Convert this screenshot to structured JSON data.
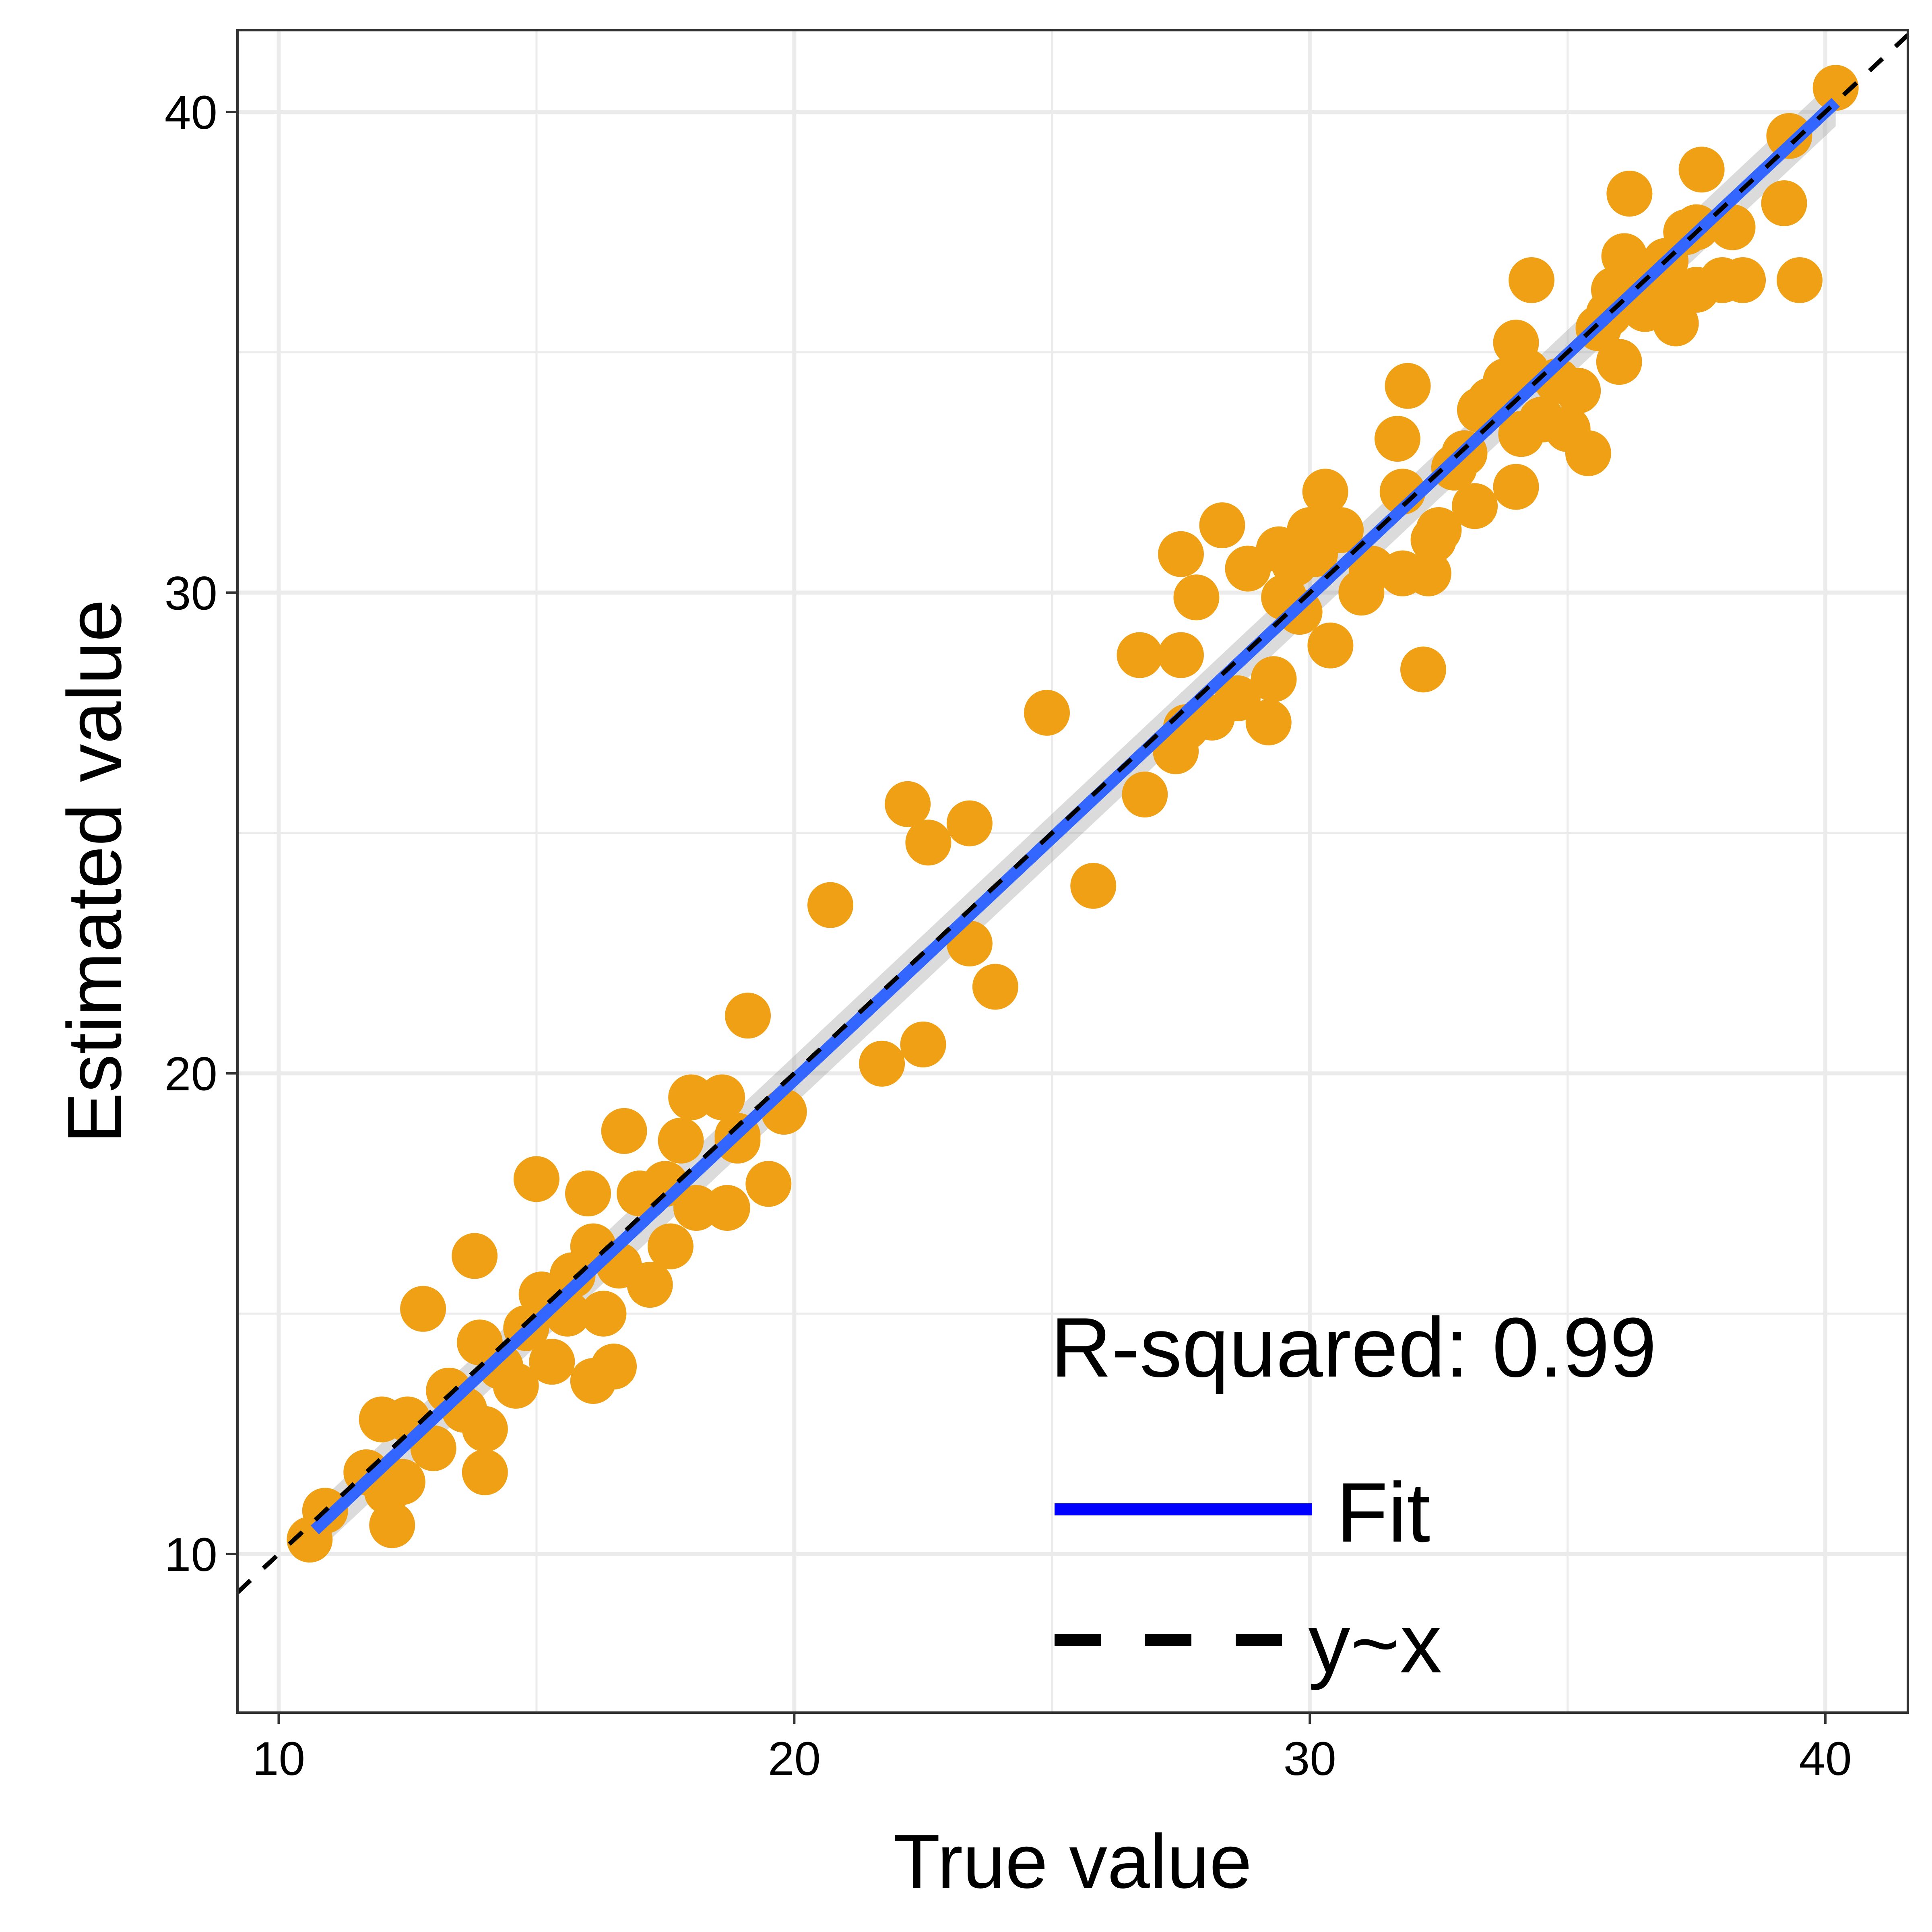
{
  "chart_data": {
    "type": "scatter",
    "xlabel": "True value",
    "ylabel": "Estimated value",
    "xlim": [
      9.2,
      41.6
    ],
    "ylim": [
      6.7,
      41.7
    ],
    "xticks": [
      10,
      20,
      30,
      40
    ],
    "yticks": [
      10,
      20,
      30,
      40
    ],
    "grid": true,
    "annotation": "R-squared: 0.99",
    "legend": {
      "position": "bottom-right",
      "entries": [
        {
          "label": "Fit",
          "style": "solid",
          "color": "#0000ff"
        },
        {
          "label": "y~x",
          "style": "dashed",
          "color": "#000000"
        }
      ]
    },
    "point_color": "#f0a014",
    "fit_color": "#3366ff",
    "identity_color": "#000000",
    "fit_line": {
      "x": [
        10.7,
        40.2
      ],
      "y": [
        10.5,
        40.2
      ]
    },
    "points": [
      [
        10.6,
        10.3
      ],
      [
        10.9,
        10.9
      ],
      [
        11.7,
        11.7
      ],
      [
        12.0,
        12.8
      ],
      [
        12.1,
        11.3
      ],
      [
        12.2,
        10.6
      ],
      [
        12.4,
        11.5
      ],
      [
        12.5,
        12.8
      ],
      [
        12.8,
        15.1
      ],
      [
        13.0,
        12.2
      ],
      [
        13.3,
        13.4
      ],
      [
        13.6,
        13.0
      ],
      [
        13.8,
        16.2
      ],
      [
        13.9,
        14.4
      ],
      [
        14.0,
        12.6
      ],
      [
        14.0,
        11.7
      ],
      [
        14.3,
        13.9
      ],
      [
        14.6,
        13.5
      ],
      [
        14.8,
        14.7
      ],
      [
        15.0,
        17.8
      ],
      [
        15.1,
        15.4
      ],
      [
        15.3,
        14.0
      ],
      [
        15.6,
        15.0
      ],
      [
        15.7,
        15.8
      ],
      [
        16.0,
        17.5
      ],
      [
        16.1,
        13.6
      ],
      [
        16.1,
        16.4
      ],
      [
        16.3,
        15.0
      ],
      [
        16.5,
        13.9
      ],
      [
        16.6,
        16.0
      ],
      [
        16.7,
        18.8
      ],
      [
        17.0,
        17.5
      ],
      [
        17.2,
        15.6
      ],
      [
        17.5,
        17.7
      ],
      [
        17.6,
        16.4
      ],
      [
        17.8,
        18.6
      ],
      [
        18.0,
        19.5
      ],
      [
        18.1,
        17.2
      ],
      [
        18.6,
        19.5
      ],
      [
        18.7,
        17.2
      ],
      [
        18.9,
        18.6
      ],
      [
        18.9,
        18.7
      ],
      [
        19.1,
        21.2
      ],
      [
        19.5,
        17.7
      ],
      [
        19.8,
        19.2
      ],
      [
        20.7,
        23.5
      ],
      [
        21.7,
        20.2
      ],
      [
        22.2,
        25.6
      ],
      [
        22.5,
        20.6
      ],
      [
        22.6,
        24.8
      ],
      [
        23.4,
        22.7
      ],
      [
        23.4,
        25.2
      ],
      [
        23.9,
        21.8
      ],
      [
        24.9,
        27.5
      ],
      [
        25.8,
        23.9
      ],
      [
        26.7,
        28.7
      ],
      [
        26.8,
        25.8
      ],
      [
        27.4,
        26.7
      ],
      [
        27.5,
        28.7
      ],
      [
        27.5,
        30.8
      ],
      [
        27.6,
        27.2
      ],
      [
        27.8,
        29.9
      ],
      [
        28.1,
        27.4
      ],
      [
        28.3,
        31.4
      ],
      [
        28.6,
        27.8
      ],
      [
        28.8,
        30.5
      ],
      [
        29.2,
        27.3
      ],
      [
        29.3,
        28.2
      ],
      [
        29.4,
        30.9
      ],
      [
        29.5,
        29.9
      ],
      [
        29.7,
        30.6
      ],
      [
        29.8,
        29.6
      ],
      [
        30.0,
        31.3
      ],
      [
        30.1,
        30.8
      ],
      [
        30.3,
        32.1
      ],
      [
        30.4,
        28.9
      ],
      [
        30.6,
        31.3
      ],
      [
        31.0,
        30.0
      ],
      [
        31.2,
        30.5
      ],
      [
        31.7,
        33.2
      ],
      [
        31.8,
        32.1
      ],
      [
        31.8,
        30.4
      ],
      [
        31.9,
        34.3
      ],
      [
        32.2,
        28.4
      ],
      [
        32.3,
        30.4
      ],
      [
        32.4,
        31.1
      ],
      [
        32.5,
        31.3
      ],
      [
        32.8,
        32.6
      ],
      [
        33.0,
        32.9
      ],
      [
        33.2,
        31.8
      ],
      [
        33.3,
        33.8
      ],
      [
        33.5,
        34.0
      ],
      [
        33.8,
        34.4
      ],
      [
        34.0,
        35.2
      ],
      [
        34.0,
        32.2
      ],
      [
        34.1,
        33.3
      ],
      [
        34.2,
        34.6
      ],
      [
        34.3,
        36.5
      ],
      [
        34.5,
        33.6
      ],
      [
        34.8,
        34.4
      ],
      [
        35.0,
        33.4
      ],
      [
        35.2,
        34.2
      ],
      [
        35.4,
        32.9
      ],
      [
        35.6,
        35.5
      ],
      [
        35.8,
        35.8
      ],
      [
        35.9,
        36.3
      ],
      [
        36.0,
        34.8
      ],
      [
        36.1,
        37.0
      ],
      [
        36.2,
        38.3
      ],
      [
        36.5,
        35.9
      ],
      [
        36.7,
        36.4
      ],
      [
        36.9,
        36.9
      ],
      [
        37.1,
        35.6
      ],
      [
        37.2,
        36.2
      ],
      [
        37.3,
        37.5
      ],
      [
        37.5,
        36.3
      ],
      [
        37.5,
        37.6
      ],
      [
        37.6,
        38.8
      ],
      [
        38.0,
        36.5
      ],
      [
        38.2,
        37.6
      ],
      [
        38.4,
        36.5
      ],
      [
        39.2,
        38.1
      ],
      [
        39.3,
        39.5
      ],
      [
        39.5,
        36.5
      ],
      [
        40.2,
        40.5
      ]
    ]
  }
}
